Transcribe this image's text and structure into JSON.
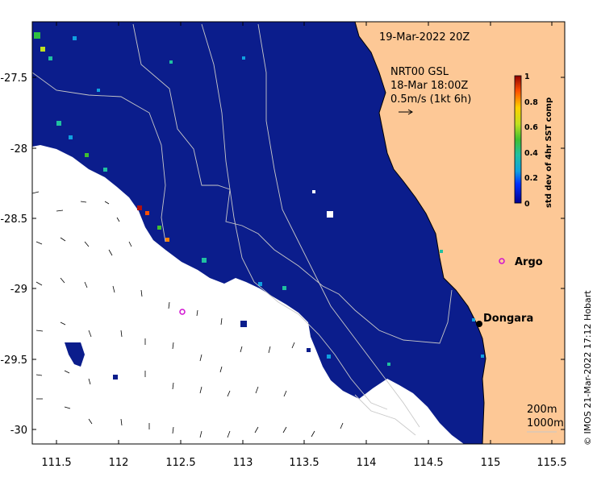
{
  "map": {
    "timestamp_label": "19-Mar-2022 20Z",
    "current_label_1": "NRT00 GSL",
    "current_label_2": "18-Mar 18:00Z",
    "current_label_3": "0.5m/s (1kt 6h)",
    "x_ticks": [
      "111.5",
      "112",
      "112.5",
      "113",
      "113.5",
      "114",
      "114.5",
      "115",
      "115.5"
    ],
    "y_ticks": [
      "-27.5",
      "-28",
      "-28.5",
      "-29",
      "-29.5",
      "-30"
    ],
    "colorbar": {
      "title": "std dev of 4hr SST comp",
      "ticks": [
        "1",
        "0.8",
        "0.6",
        "0.4",
        "0.2",
        "0"
      ]
    },
    "places": {
      "argo": "Argo",
      "dongara": "Dongara"
    },
    "bathymetry_labels": [
      "200m",
      "1000m"
    ],
    "credit": "© IMOS 21-Mar-2022 17:12 Hobart",
    "colors": {
      "land": "#fdc896",
      "ocean_low": "#0b1d8c",
      "argo": "#d010d0"
    }
  }
}
